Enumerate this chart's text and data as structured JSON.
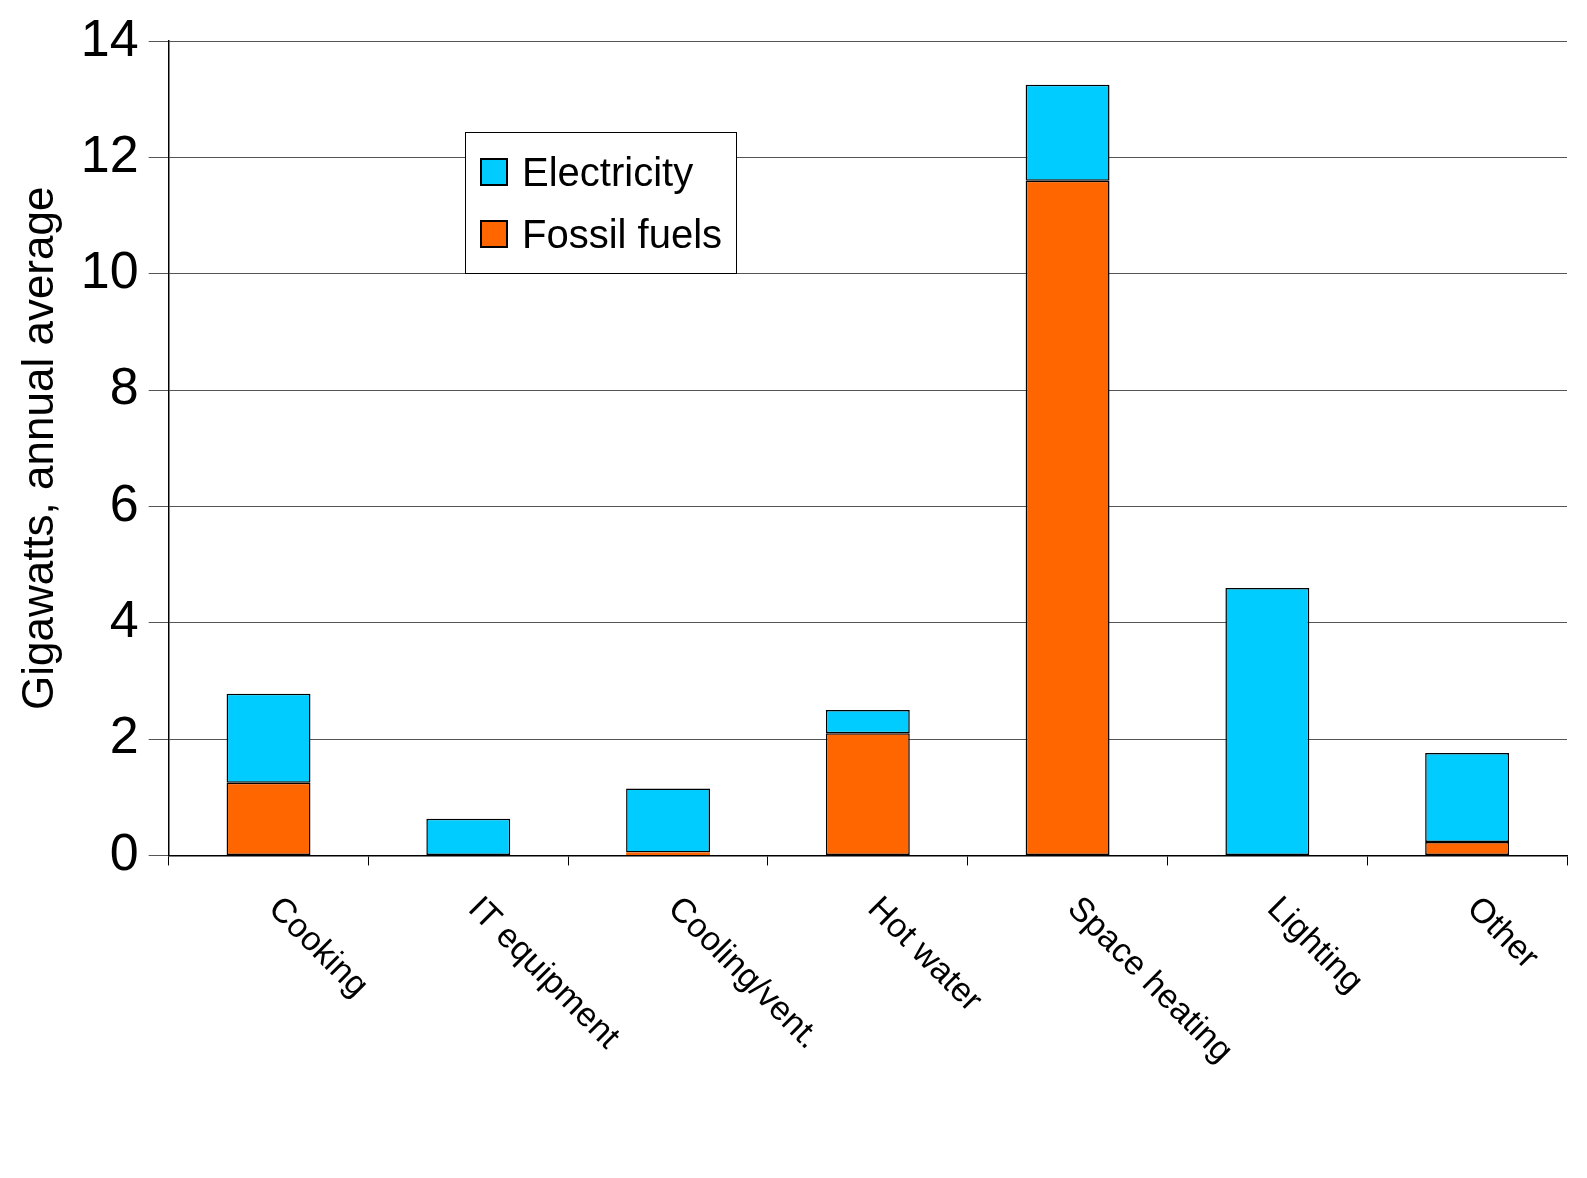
{
  "chart_data": {
    "type": "bar",
    "ylabel": "Gigawatts, annual average",
    "categories": [
      "Cooking",
      "IT equipment",
      "Cooling/vent.",
      "Hot water",
      "Space heating",
      "Lighting",
      "Other"
    ],
    "stacked": true,
    "series": [
      {
        "name": "Fossil fuels",
        "color": "#ff6600",
        "values": [
          1.25,
          0,
          0.05,
          2.1,
          11.6,
          0,
          0.23
        ]
      },
      {
        "name": "Electricity",
        "color": "#00ccff",
        "values": [
          1.53,
          0.63,
          1.1,
          0.4,
          1.65,
          4.6,
          1.53
        ]
      }
    ],
    "ylim": [
      0,
      14
    ],
    "yticks": [
      0,
      2,
      4,
      6,
      8,
      10,
      12,
      14
    ],
    "grid": "y",
    "legend": "top left"
  }
}
